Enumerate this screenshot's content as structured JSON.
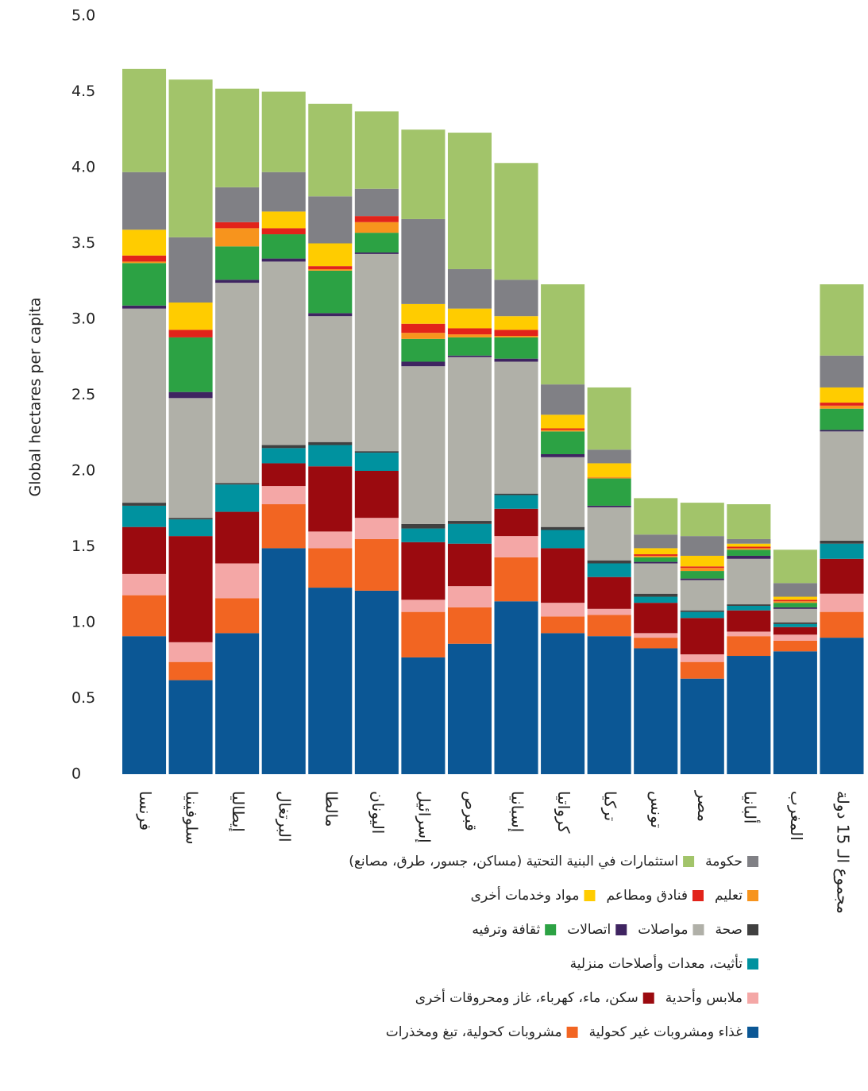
{
  "chart_data": {
    "type": "stacked-bar",
    "y_label": "Global hectares per capita",
    "categories": [
      "فرنسا",
      "سلوفينيا",
      "إيطاليا",
      "البرتغال",
      "مالطا",
      "اليونان",
      "إسرائيل",
      "قبرص",
      "إسبانيا",
      "كرواتيا",
      "تركيا",
      "تونس",
      "مصر",
      "ألبانيا",
      "المغرب",
      "مجموع الـ 15 دولة"
    ],
    "ylim": [
      0,
      5
    ],
    "yticks": [
      0,
      0.5,
      {
        "value": 1,
        "label": "1.0"
      },
      1.5,
      {
        "value": 2,
        "label": "2.0"
      },
      2.5,
      {
        "value": 3,
        "label": "3.0"
      },
      3.5,
      {
        "value": 4,
        "label": "4.0"
      },
      4.5,
      {
        "value": 5,
        "label": "5.0"
      }
    ],
    "series": [
      {
        "name": "غذاء ومشروبات غير كحولية",
        "color": "#0b5795",
        "values": [
          0.91,
          0.62,
          0.93,
          1.49,
          1.23,
          1.21,
          0.77,
          0.86,
          1.14,
          0.93,
          0.91,
          0.83,
          0.63,
          0.78,
          0.81,
          0.9
        ]
      },
      {
        "name": "مشروبات كحولية، تبغ ومخذرات",
        "color": "#f26522",
        "values": [
          0.27,
          0.12,
          0.23,
          0.29,
          0.26,
          0.34,
          0.3,
          0.24,
          0.29,
          0.11,
          0.14,
          0.07,
          0.11,
          0.13,
          0.07,
          0.17
        ]
      },
      {
        "name": "ملابس وأحدية",
        "color": "#f4a7a6",
        "values": [
          0.14,
          0.13,
          0.23,
          0.12,
          0.11,
          0.14,
          0.08,
          0.14,
          0.14,
          0.09,
          0.04,
          0.03,
          0.05,
          0.03,
          0.04,
          0.12
        ]
      },
      {
        "name": "سكن، ماء، كهرباء، غاز ومحروقات أخرى",
        "color": "#9b0a0f",
        "values": [
          0.31,
          0.7,
          0.34,
          0.15,
          0.43,
          0.31,
          0.38,
          0.28,
          0.18,
          0.36,
          0.21,
          0.2,
          0.24,
          0.14,
          0.05,
          0.23
        ]
      },
      {
        "name": "تأثيت، معدات وأصلاحات منزلية",
        "color": "#00929f",
        "values": [
          0.14,
          0.11,
          0.18,
          0.1,
          0.14,
          0.12,
          0.09,
          0.13,
          0.09,
          0.12,
          0.09,
          0.04,
          0.04,
          0.03,
          0.02,
          0.1
        ]
      },
      {
        "name": "صحة",
        "color": "#404040",
        "values": [
          0.02,
          0.01,
          0.01,
          0.02,
          0.02,
          0.01,
          0.03,
          0.02,
          0.01,
          0.02,
          0.02,
          0.02,
          0.01,
          0.01,
          0.01,
          0.02
        ]
      },
      {
        "name": "مواصلات",
        "color": "#b0b0a8",
        "values": [
          1.28,
          0.79,
          1.32,
          1.21,
          0.83,
          1.3,
          1.04,
          1.08,
          0.87,
          0.46,
          0.35,
          0.2,
          0.2,
          0.3,
          0.09,
          0.72
        ]
      },
      {
        "name": "اتصالات",
        "color": "#3f2461",
        "values": [
          0.02,
          0.04,
          0.02,
          0.02,
          0.02,
          0.01,
          0.03,
          0.01,
          0.02,
          0.02,
          0.01,
          0.01,
          0.01,
          0.02,
          0.01,
          0.01
        ]
      },
      {
        "name": "ثقافة وترفيه",
        "color": "#2ca244",
        "values": [
          0.28,
          0.36,
          0.22,
          0.16,
          0.28,
          0.13,
          0.15,
          0.12,
          0.14,
          0.15,
          0.18,
          0.03,
          0.05,
          0.04,
          0.03,
          0.14
        ]
      },
      {
        "name": "تعليم",
        "color": "#f7941d",
        "values": [
          0.01,
          0,
          0.12,
          0,
          0.01,
          0.07,
          0.04,
          0.02,
          0.01,
          0.01,
          0.01,
          0.01,
          0.02,
          0.01,
          0.01,
          0.02
        ]
      },
      {
        "name": "فنادق ومطاعم",
        "color": "#e2231a",
        "values": [
          0.04,
          0.05,
          0.04,
          0.04,
          0.02,
          0.04,
          0.06,
          0.04,
          0.04,
          0.01,
          0,
          0.01,
          0.01,
          0.01,
          0.01,
          0.02
        ]
      },
      {
        "name": "مواد وخدمات أخرى",
        "color": "#ffcc00",
        "values": [
          0.17,
          0.18,
          0,
          0.11,
          0.15,
          0,
          0.13,
          0.13,
          0.09,
          0.09,
          0.09,
          0.04,
          0.07,
          0.02,
          0.02,
          0.1
        ]
      },
      {
        "name": "حكومة",
        "color": "#808085",
        "values": [
          0.38,
          0.43,
          0.23,
          0.26,
          0.31,
          0.18,
          0.56,
          0.26,
          0.24,
          0.2,
          0.09,
          0.09,
          0.13,
          0.03,
          0.09,
          0.21
        ]
      },
      {
        "name": "استثمارات في البنية التحتية (مساكن، جسور، طرق، مصانع)",
        "color": "#a2c46a",
        "values": [
          0.68,
          1.04,
          0.65,
          0.53,
          0.61,
          0.51,
          0.59,
          0.9,
          0.77,
          0.66,
          0.41,
          0.24,
          0.22,
          0.23,
          0.22,
          0.47
        ]
      }
    ]
  }
}
